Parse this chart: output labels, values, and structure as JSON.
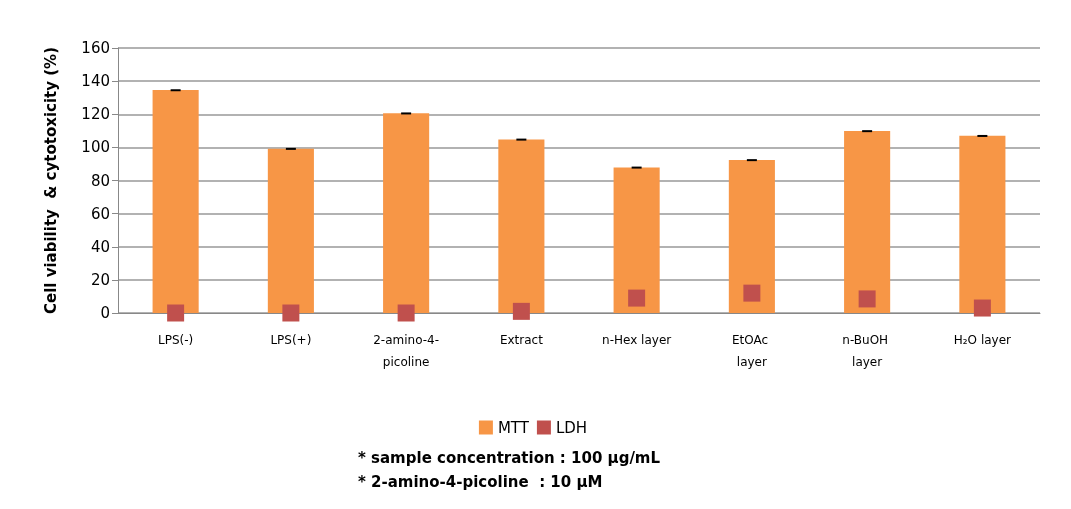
{
  "chart_data": {
    "type": "bar",
    "ylabel": "Cell viability  & cytotoxicity (%)",
    "categories": [
      "LPS(-)",
      "LPS(+)",
      "2-amino-4-picoline",
      "Extract",
      "n-Hex layer",
      "EtOAc layer",
      "n-BuOH layer",
      "H₂O layer"
    ],
    "series": [
      {
        "name": "MTT",
        "color": "#f79646",
        "values": [
          134.6,
          99.2,
          120.6,
          104.8,
          87.9,
          92.4,
          109.9,
          107.0
        ],
        "errors": [
          0.5,
          0.5,
          0.5,
          0.5,
          0.5,
          0.5,
          0.5,
          0.5
        ]
      },
      {
        "name": "LDH",
        "type": "scatter",
        "color": "#c0504d",
        "x": [
          "LPS(-)",
          "LPS(+)",
          "2-amino-4-picoline",
          "Extract",
          "n-Hex layer",
          "EtOAc layer",
          "n-BuOH layer",
          "H₂O layer"
        ],
        "values": [
          0,
          0,
          0,
          1,
          9,
          12,
          8.5,
          3
        ]
      }
    ],
    "ylim": [
      0,
      160
    ],
    "yticks": [
      0,
      20,
      40,
      60,
      80,
      100,
      120,
      140,
      160
    ],
    "grid": "y",
    "legend": "bottom",
    "marker": "square",
    "annotations": [
      "* sample concentration : 100 µg/mL",
      "* 2-amino-4-picoline  : 10 µM"
    ]
  }
}
